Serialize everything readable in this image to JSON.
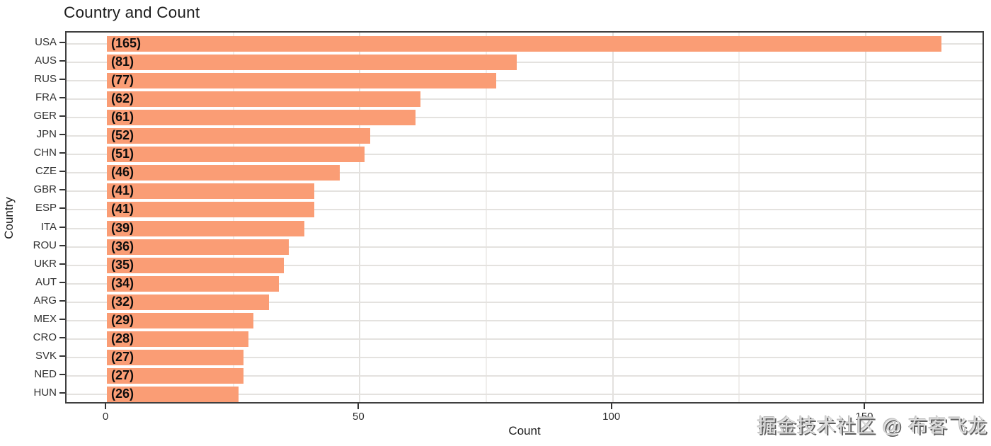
{
  "title": "Country and Count",
  "watermark": "掘金技术社区 @ 布客飞龙",
  "chart_data": {
    "type": "bar",
    "orientation": "horizontal",
    "title": "Country and Count",
    "xlabel": "Count",
    "ylabel": "Country",
    "categories": [
      "USA",
      "AUS",
      "RUS",
      "FRA",
      "GER",
      "JPN",
      "CHN",
      "CZE",
      "GBR",
      "ESP",
      "ITA",
      "ROU",
      "UKR",
      "AUT",
      "ARG",
      "MEX",
      "CRO",
      "SVK",
      "NED",
      "HUN"
    ],
    "values": [
      165,
      81,
      77,
      62,
      61,
      52,
      51,
      46,
      41,
      41,
      39,
      36,
      35,
      34,
      32,
      29,
      28,
      27,
      27,
      26
    ],
    "value_label_format": "({v})",
    "bar_color": "#FA9D75",
    "x_ticks": [
      0,
      50,
      100,
      150
    ],
    "x_minor_ticks": [
      25,
      75,
      125
    ],
    "xlim": [
      -8,
      174
    ],
    "grid": true,
    "legend": "none",
    "panel_border_color": "#3f3f3f",
    "grid_major_color": "#e3e1de",
    "grid_minor_color": "#f0eeec"
  }
}
